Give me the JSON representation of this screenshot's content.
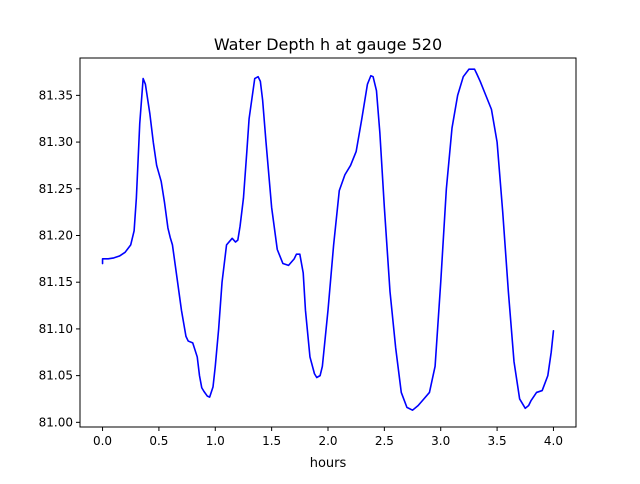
{
  "chart_data": {
    "type": "line",
    "title": "Water Depth h at gauge 520",
    "xlabel": "hours",
    "ylabel": "",
    "xlim": [
      -0.2,
      4.2
    ],
    "ylim": [
      80.995,
      81.39
    ],
    "xticks": [
      0.0,
      0.5,
      1.0,
      1.5,
      2.0,
      2.5,
      3.0,
      3.5,
      4.0
    ],
    "xtick_labels": [
      "0.0",
      "0.5",
      "1.0",
      "1.5",
      "2.0",
      "2.5",
      "3.0",
      "3.5",
      "4.0"
    ],
    "yticks": [
      81.0,
      81.05,
      81.1,
      81.15,
      81.2,
      81.25,
      81.3,
      81.35
    ],
    "ytick_labels": [
      "81.00",
      "81.05",
      "81.10",
      "81.15",
      "81.20",
      "81.25",
      "81.30",
      "81.35"
    ],
    "grid": false,
    "series": [
      {
        "color": "#0000ff",
        "x": [
          0.0,
          0.0,
          0.05,
          0.1,
          0.15,
          0.2,
          0.25,
          0.28,
          0.3,
          0.33,
          0.36,
          0.38,
          0.42,
          0.45,
          0.48,
          0.52,
          0.55,
          0.58,
          0.6,
          0.62,
          0.66,
          0.7,
          0.74,
          0.76,
          0.8,
          0.84,
          0.86,
          0.88,
          0.9,
          0.93,
          0.95,
          0.98,
          1.0,
          1.03,
          1.06,
          1.1,
          1.15,
          1.18,
          1.2,
          1.22,
          1.25,
          1.28,
          1.3,
          1.35,
          1.38,
          1.4,
          1.42,
          1.45,
          1.5,
          1.55,
          1.6,
          1.65,
          1.7,
          1.72,
          1.75,
          1.78,
          1.8,
          1.84,
          1.88,
          1.9,
          1.93,
          1.95,
          2.0,
          2.05,
          2.1,
          2.15,
          2.2,
          2.25,
          2.3,
          2.35,
          2.38,
          2.4,
          2.43,
          2.46,
          2.5,
          2.55,
          2.6,
          2.65,
          2.7,
          2.75,
          2.8,
          2.85,
          2.9,
          2.95,
          3.0,
          3.05,
          3.1,
          3.15,
          3.2,
          3.25,
          3.3,
          3.32,
          3.35,
          3.4,
          3.45,
          3.5,
          3.55,
          3.6,
          3.65,
          3.7,
          3.75,
          3.78,
          3.8,
          3.85,
          3.9,
          3.95,
          3.98,
          4.0
        ],
        "y": [
          81.17,
          81.175,
          81.175,
          81.176,
          81.178,
          81.182,
          81.19,
          81.205,
          81.24,
          81.32,
          81.368,
          81.362,
          81.33,
          81.3,
          81.275,
          81.258,
          81.235,
          81.208,
          81.198,
          81.19,
          81.155,
          81.12,
          81.092,
          81.087,
          81.085,
          81.07,
          81.05,
          81.037,
          81.033,
          81.028,
          81.027,
          81.038,
          81.06,
          81.1,
          81.15,
          81.19,
          81.197,
          81.193,
          81.195,
          81.21,
          81.24,
          81.29,
          81.325,
          81.368,
          81.37,
          81.365,
          81.345,
          81.3,
          81.23,
          81.185,
          81.17,
          81.168,
          81.175,
          81.18,
          81.18,
          81.16,
          81.12,
          81.07,
          81.052,
          81.048,
          81.05,
          81.06,
          81.12,
          81.19,
          81.248,
          81.265,
          81.275,
          81.29,
          81.325,
          81.362,
          81.371,
          81.37,
          81.355,
          81.31,
          81.23,
          81.14,
          81.08,
          81.032,
          81.016,
          81.013,
          81.018,
          81.025,
          81.032,
          81.06,
          81.15,
          81.25,
          81.315,
          81.35,
          81.37,
          81.378,
          81.378,
          81.373,
          81.365,
          81.35,
          81.335,
          81.3,
          81.225,
          81.14,
          81.065,
          81.025,
          81.015,
          81.018,
          81.023,
          81.032,
          81.034,
          81.05,
          81.075,
          81.098
        ]
      }
    ]
  }
}
